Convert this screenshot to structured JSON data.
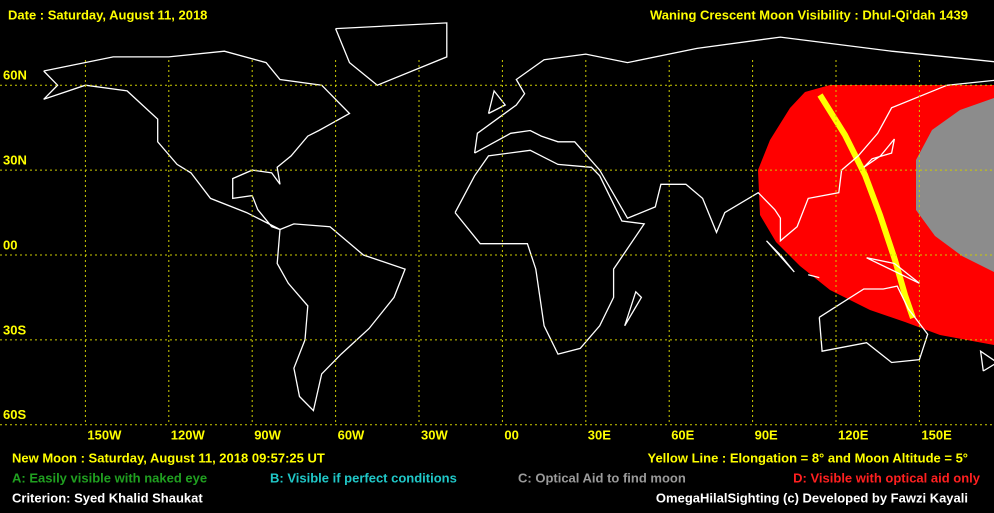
{
  "header": {
    "date": "Date : Saturday, August 11, 2018",
    "title": "Waning Crescent Moon Visibility : Dhul-Qi'dah 1439"
  },
  "map": {
    "lat_labels": [
      "60N",
      "30N",
      "00",
      "30S",
      "60S"
    ],
    "lon_labels": [
      "150W",
      "120W",
      "90W",
      "60W",
      "30W",
      "00",
      "30E",
      "60E",
      "90E",
      "120E",
      "150E"
    ]
  },
  "footer": {
    "new_moon": "New Moon : Saturday, August 11, 2018  09:57:25  UT",
    "yellow_line": "Yellow Line : Elongation = 8° and Moon Altitude = 5°",
    "legend": {
      "a": "A: Easily visible with naked eye",
      "b": "B: Visible if perfect conditions",
      "c": "C: Optical Aid to find moon",
      "d": "D: Visible with optical aid only"
    },
    "criterion": "Criterion: Syed Khalid Shaukat",
    "credit": "OmegaHilalSighting  (c) Developed by Fawzi Kayali"
  }
}
